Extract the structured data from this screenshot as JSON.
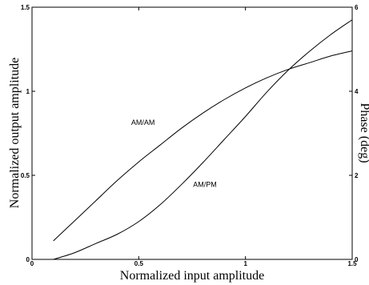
{
  "chart_data": {
    "type": "line",
    "title": "",
    "xlabel": "Normalized input amplitude",
    "ylabel": "Normalized output amplitude",
    "ylabel_right": "Phase (deg)",
    "xlim": [
      0,
      1.5
    ],
    "ylim": [
      0,
      1.5
    ],
    "ylim_right": [
      0,
      6
    ],
    "x_ticks": [
      0,
      0.5,
      1,
      1.5
    ],
    "x_tick_labels": [
      "0",
      "0.5",
      "1",
      "1.5"
    ],
    "y_ticks": [
      0,
      0.5,
      1,
      1.5
    ],
    "y_tick_labels": [
      "0",
      "0.5",
      "1",
      "1.5"
    ],
    "y_ticks_right": [
      0,
      2,
      4,
      6
    ],
    "y_tick_labels_right": [
      "0",
      "2",
      "4",
      "6"
    ],
    "grid": false,
    "series": [
      {
        "name": "AM/AM",
        "axis": "left",
        "x": [
          0.1,
          0.2,
          0.3,
          0.4,
          0.5,
          0.6,
          0.7,
          0.8,
          0.9,
          1.0,
          1.1,
          1.2,
          1.3,
          1.4,
          1.5
        ],
        "y": [
          0.11,
          0.23,
          0.35,
          0.47,
          0.58,
          0.68,
          0.78,
          0.87,
          0.95,
          1.02,
          1.08,
          1.13,
          1.17,
          1.21,
          1.24
        ]
      },
      {
        "name": "AM/PM",
        "axis": "right",
        "x": [
          0.1,
          0.2,
          0.3,
          0.4,
          0.5,
          0.6,
          0.7,
          0.8,
          0.9,
          1.0,
          1.1,
          1.2,
          1.3,
          1.4,
          1.5
        ],
        "y": [
          0.0,
          0.16,
          0.38,
          0.6,
          0.9,
          1.3,
          1.78,
          2.3,
          2.85,
          3.4,
          3.98,
          4.5,
          4.95,
          5.35,
          5.7
        ]
      }
    ],
    "annotations": [
      {
        "text": "AM/AM",
        "x": 0.52,
        "y": 0.8,
        "axis": "left"
      },
      {
        "text": "AM/PM",
        "x": 0.81,
        "y": 0.43,
        "axis": "left"
      }
    ]
  }
}
